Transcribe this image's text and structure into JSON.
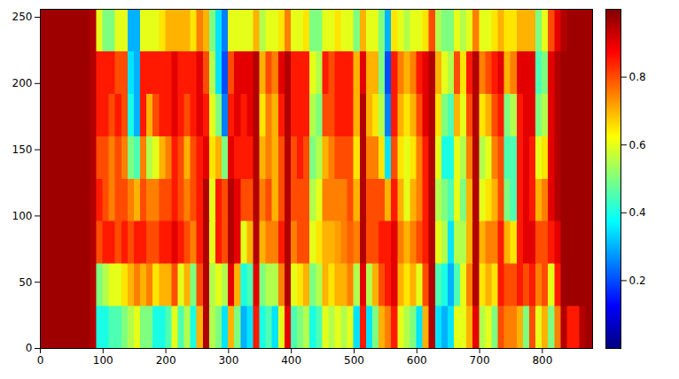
{
  "chart_data": {
    "type": "heatmap",
    "color": "jet",
    "xlim": [
      0,
      880
    ],
    "ylim": [
      0,
      256
    ],
    "xticks": [
      0,
      100,
      200,
      300,
      400,
      500,
      600,
      700,
      800
    ],
    "yticks": [
      0,
      50,
      100,
      150,
      200,
      250
    ],
    "x_edges": [
      0,
      10,
      20,
      30,
      40,
      50,
      60,
      70,
      80,
      90,
      100,
      110,
      120,
      130,
      140,
      150,
      160,
      170,
      180,
      190,
      200,
      210,
      220,
      230,
      240,
      250,
      260,
      270,
      280,
      290,
      300,
      310,
      320,
      330,
      340,
      350,
      360,
      370,
      380,
      390,
      400,
      410,
      420,
      430,
      440,
      450,
      460,
      470,
      480,
      490,
      500,
      510,
      520,
      530,
      540,
      550,
      560,
      570,
      580,
      590,
      600,
      610,
      620,
      630,
      640,
      650,
      660,
      670,
      680,
      690,
      700,
      710,
      720,
      730,
      740,
      750,
      760,
      770,
      780,
      790,
      800,
      810,
      820,
      830,
      840,
      850,
      860,
      870,
      880
    ],
    "y_edges": [
      0,
      32,
      64,
      96,
      128,
      160,
      192,
      224,
      256
    ],
    "z": [
      [
        0.97,
        0.97,
        0.97,
        0.97,
        0.97,
        0.97,
        0.97,
        0.97,
        0.95,
        0.4,
        0.4,
        0.45,
        0.45,
        0.5,
        0.55,
        0.6,
        0.5,
        0.5,
        0.4,
        0.4,
        0.45,
        0.6,
        0.45,
        0.55,
        0.4,
        0.7,
        0.95,
        0.55,
        0.5,
        0.35,
        0.7,
        0.5,
        0.3,
        0.35,
        0.85,
        0.4,
        0.45,
        0.35,
        0.6,
        0.9,
        0.45,
        0.5,
        0.55,
        0.4,
        0.45,
        0.6,
        0.55,
        0.6,
        0.55,
        0.6,
        0.35,
        0.85,
        0.35,
        0.5,
        0.7,
        0.75,
        0.85,
        0.6,
        0.55,
        0.5,
        0.35,
        0.7,
        0.95,
        0.35,
        0.3,
        0.35,
        0.6,
        0.6,
        0.7,
        0.9,
        0.55,
        0.6,
        0.5,
        0.8,
        0.75,
        0.75,
        0.7,
        0.5,
        0.8,
        0.6,
        0.7,
        0.5,
        0.75,
        0.95,
        0.85,
        0.85,
        0.95,
        0.97
      ],
      [
        0.97,
        0.97,
        0.97,
        0.97,
        0.97,
        0.97,
        0.97,
        0.97,
        0.95,
        0.5,
        0.55,
        0.6,
        0.6,
        0.65,
        0.7,
        0.75,
        0.7,
        0.75,
        0.65,
        0.7,
        0.7,
        0.8,
        0.6,
        0.7,
        0.5,
        0.8,
        0.95,
        0.55,
        0.6,
        0.55,
        0.9,
        0.7,
        0.4,
        0.45,
        0.9,
        0.5,
        0.55,
        0.55,
        0.75,
        0.95,
        0.6,
        0.65,
        0.7,
        0.5,
        0.55,
        0.7,
        0.65,
        0.7,
        0.7,
        0.75,
        0.55,
        0.9,
        0.55,
        0.7,
        0.8,
        0.85,
        0.9,
        0.7,
        0.65,
        0.7,
        0.6,
        0.8,
        0.95,
        0.45,
        0.4,
        0.3,
        0.45,
        0.6,
        0.75,
        0.95,
        0.65,
        0.7,
        0.65,
        0.85,
        0.8,
        0.8,
        0.85,
        0.8,
        0.85,
        0.75,
        0.8,
        0.6,
        0.85,
        0.97,
        0.97,
        0.97,
        0.97,
        0.97
      ],
      [
        0.97,
        0.97,
        0.97,
        0.97,
        0.97,
        0.97,
        0.97,
        0.97,
        0.95,
        0.8,
        0.85,
        0.85,
        0.8,
        0.85,
        0.8,
        0.85,
        0.85,
        0.8,
        0.8,
        0.85,
        0.85,
        0.9,
        0.85,
        0.8,
        0.75,
        0.85,
        0.95,
        0.6,
        0.85,
        0.8,
        0.95,
        0.9,
        0.6,
        0.7,
        0.95,
        0.7,
        0.75,
        0.75,
        0.85,
        0.95,
        0.75,
        0.8,
        0.8,
        0.6,
        0.65,
        0.7,
        0.7,
        0.72,
        0.75,
        0.78,
        0.75,
        0.95,
        0.8,
        0.8,
        0.85,
        0.85,
        0.9,
        0.75,
        0.7,
        0.75,
        0.8,
        0.85,
        0.95,
        0.6,
        0.55,
        0.35,
        0.55,
        0.55,
        0.7,
        0.95,
        0.7,
        0.75,
        0.75,
        0.85,
        0.7,
        0.65,
        0.85,
        0.9,
        0.9,
        0.8,
        0.8,
        0.85,
        0.9,
        0.97,
        0.97,
        0.97,
        0.97,
        0.97
      ],
      [
        0.97,
        0.97,
        0.97,
        0.97,
        0.97,
        0.97,
        0.97,
        0.97,
        0.95,
        0.85,
        0.8,
        0.75,
        0.8,
        0.8,
        0.75,
        0.7,
        0.8,
        0.75,
        0.75,
        0.8,
        0.8,
        0.85,
        0.8,
        0.75,
        0.8,
        0.85,
        0.95,
        0.6,
        0.85,
        0.8,
        0.95,
        0.9,
        0.8,
        0.8,
        0.95,
        0.75,
        0.8,
        0.7,
        0.8,
        0.95,
        0.8,
        0.8,
        0.8,
        0.55,
        0.6,
        0.75,
        0.75,
        0.75,
        0.75,
        0.8,
        0.7,
        0.95,
        0.8,
        0.8,
        0.8,
        0.7,
        0.85,
        0.7,
        0.6,
        0.7,
        0.75,
        0.85,
        0.95,
        0.55,
        0.5,
        0.45,
        0.6,
        0.5,
        0.7,
        0.95,
        0.6,
        0.65,
        0.7,
        0.8,
        0.5,
        0.45,
        0.85,
        0.9,
        0.85,
        0.7,
        0.75,
        0.9,
        0.95,
        0.97,
        0.97,
        0.97,
        0.97,
        0.97
      ],
      [
        0.97,
        0.97,
        0.97,
        0.97,
        0.97,
        0.97,
        0.97,
        0.97,
        0.95,
        0.8,
        0.8,
        0.75,
        0.8,
        0.75,
        0.5,
        0.45,
        0.75,
        0.55,
        0.6,
        0.7,
        0.75,
        0.85,
        0.8,
        0.7,
        0.8,
        0.85,
        0.9,
        0.65,
        0.7,
        0.5,
        0.9,
        0.85,
        0.85,
        0.85,
        0.95,
        0.7,
        0.75,
        0.7,
        0.8,
        0.95,
        0.8,
        0.85,
        0.8,
        0.5,
        0.55,
        0.7,
        0.75,
        0.8,
        0.8,
        0.8,
        0.65,
        0.95,
        0.75,
        0.75,
        0.65,
        0.35,
        0.8,
        0.65,
        0.6,
        0.65,
        0.75,
        0.85,
        0.95,
        0.6,
        0.4,
        0.4,
        0.6,
        0.55,
        0.75,
        0.95,
        0.55,
        0.6,
        0.75,
        0.8,
        0.45,
        0.45,
        0.85,
        0.9,
        0.85,
        0.6,
        0.65,
        0.9,
        0.95,
        0.97,
        0.97,
        0.97,
        0.97,
        0.97
      ],
      [
        0.97,
        0.97,
        0.97,
        0.97,
        0.97,
        0.97,
        0.97,
        0.97,
        0.95,
        0.85,
        0.85,
        0.8,
        0.85,
        0.8,
        0.4,
        0.3,
        0.85,
        0.7,
        0.8,
        0.85,
        0.85,
        0.9,
        0.85,
        0.8,
        0.85,
        0.9,
        0.85,
        0.6,
        0.5,
        0.25,
        0.85,
        0.9,
        0.85,
        0.9,
        0.95,
        0.65,
        0.75,
        0.7,
        0.85,
        0.95,
        0.85,
        0.85,
        0.85,
        0.55,
        0.5,
        0.8,
        0.8,
        0.85,
        0.85,
        0.85,
        0.7,
        0.95,
        0.7,
        0.65,
        0.55,
        0.25,
        0.85,
        0.7,
        0.65,
        0.7,
        0.8,
        0.9,
        0.95,
        0.65,
        0.5,
        0.45,
        0.7,
        0.6,
        0.8,
        0.95,
        0.65,
        0.7,
        0.8,
        0.85,
        0.5,
        0.55,
        0.85,
        0.9,
        0.9,
        0.5,
        0.55,
        0.9,
        0.95,
        0.97,
        0.97,
        0.97,
        0.97,
        0.97
      ],
      [
        0.97,
        0.97,
        0.97,
        0.97,
        0.97,
        0.97,
        0.97,
        0.97,
        0.95,
        0.85,
        0.85,
        0.85,
        0.8,
        0.8,
        0.35,
        0.3,
        0.85,
        0.85,
        0.85,
        0.85,
        0.85,
        0.9,
        0.85,
        0.85,
        0.85,
        0.9,
        0.8,
        0.55,
        0.35,
        0.2,
        0.8,
        0.9,
        0.9,
        0.9,
        0.95,
        0.7,
        0.8,
        0.75,
        0.9,
        0.95,
        0.85,
        0.85,
        0.85,
        0.6,
        0.55,
        0.85,
        0.8,
        0.85,
        0.85,
        0.85,
        0.7,
        0.9,
        0.7,
        0.7,
        0.5,
        0.2,
        0.85,
        0.75,
        0.7,
        0.75,
        0.85,
        0.9,
        0.95,
        0.7,
        0.6,
        0.55,
        0.8,
        0.65,
        0.85,
        0.95,
        0.75,
        0.8,
        0.85,
        0.9,
        0.7,
        0.75,
        0.9,
        0.9,
        0.9,
        0.45,
        0.5,
        0.9,
        0.95,
        0.97,
        0.97,
        0.97,
        0.97,
        0.97
      ],
      [
        0.97,
        0.97,
        0.97,
        0.97,
        0.97,
        0.97,
        0.97,
        0.97,
        0.95,
        0.6,
        0.5,
        0.5,
        0.6,
        0.6,
        0.3,
        0.3,
        0.6,
        0.6,
        0.6,
        0.65,
        0.7,
        0.7,
        0.7,
        0.7,
        0.65,
        0.75,
        0.7,
        0.5,
        0.35,
        0.25,
        0.6,
        0.6,
        0.6,
        0.6,
        0.7,
        0.55,
        0.6,
        0.6,
        0.65,
        0.75,
        0.6,
        0.6,
        0.65,
        0.5,
        0.5,
        0.6,
        0.6,
        0.65,
        0.6,
        0.6,
        0.5,
        0.7,
        0.6,
        0.6,
        0.5,
        0.3,
        0.65,
        0.6,
        0.55,
        0.6,
        0.6,
        0.65,
        0.8,
        0.55,
        0.5,
        0.5,
        0.6,
        0.55,
        0.6,
        0.75,
        0.6,
        0.6,
        0.65,
        0.7,
        0.65,
        0.65,
        0.7,
        0.7,
        0.7,
        0.5,
        0.6,
        0.8,
        0.9,
        0.95,
        0.97,
        0.97,
        0.97,
        0.97
      ]
    ],
    "colorbar": {
      "range": [
        0,
        1
      ],
      "ticks": [
        0.2,
        0.4,
        0.6,
        0.8
      ]
    }
  }
}
